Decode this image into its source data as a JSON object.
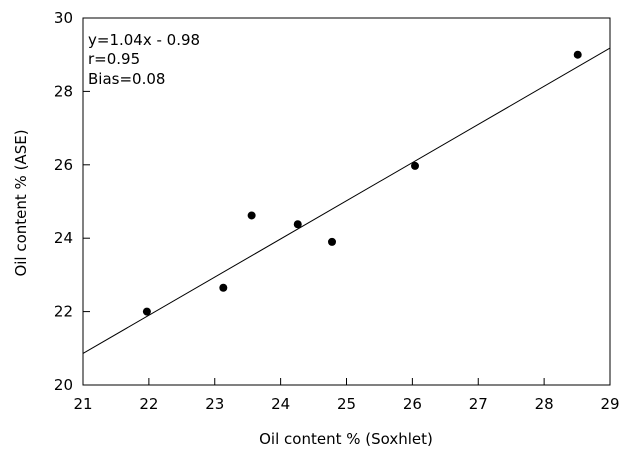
{
  "chart_data": {
    "type": "scatter",
    "title": "",
    "xlabel": "Oil content % (Soxhlet)",
    "ylabel": "Oil content % (ASE)",
    "xlim": [
      21,
      29
    ],
    "ylim": [
      20,
      30
    ],
    "x_ticks": [
      "21",
      "22",
      "23",
      "24",
      "25",
      "26",
      "27",
      "28",
      "29"
    ],
    "y_ticks": [
      "20",
      "22",
      "24",
      "26",
      "28",
      "30"
    ],
    "grid": false,
    "legend": "none",
    "series": [
      {
        "x": [
          21.97,
          23.13,
          23.56,
          24.26,
          24.78,
          26.04,
          28.51
        ],
        "y": [
          22.0,
          22.65,
          24.62,
          24.38,
          23.9,
          25.97,
          29.0
        ]
      }
    ],
    "regression_line": {
      "slope": 1.04,
      "intercept": -0.98,
      "x_range": [
        21,
        29
      ]
    },
    "annotations": [
      "y=1.04x - 0.98",
      "r=0.95",
      "Bias=0.08"
    ]
  },
  "colors": {
    "marker": "#000000",
    "line": "#000000",
    "axis": "#000000",
    "background": "#ffffff"
  }
}
